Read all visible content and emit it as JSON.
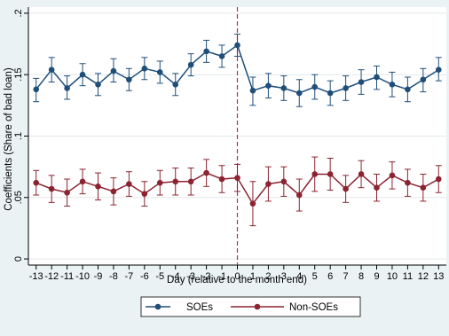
{
  "chart_data": {
    "type": "line",
    "xlabel": "Day (relative to the month end)",
    "ylabel": "Coefficients (Share of bad loan)",
    "x": [
      -13,
      -12,
      -11,
      -10,
      -9,
      -8,
      -7,
      -6,
      -5,
      -4,
      -3,
      -2,
      -1,
      0,
      1,
      2,
      3,
      4,
      5,
      6,
      7,
      8,
      9,
      10,
      11,
      12,
      13
    ],
    "x_tick_labels": [
      "-13",
      "-12",
      "-11",
      "-10",
      "-9",
      "-8",
      "-7",
      "-6",
      "-5",
      "-4",
      "-3",
      "-2",
      "-1",
      "0",
      "1",
      "2",
      "3",
      "4",
      "5",
      "6",
      "7",
      "8",
      "9",
      "10",
      "11",
      "12",
      "13"
    ],
    "y_ticks": [
      0,
      0.05,
      0.1,
      0.15,
      0.2
    ],
    "y_tick_labels": [
      "0",
      ".05",
      ".1",
      ".15",
      ".2"
    ],
    "xlim": [
      -13.5,
      13.5
    ],
    "ylim": [
      -0.005,
      0.205
    ],
    "reference_line_x": 0,
    "grid": "horizontal",
    "legend_position": "bottom",
    "series": [
      {
        "name": "SOEs",
        "color": "#1f4e79",
        "marker": "circle",
        "values": [
          0.138,
          0.154,
          0.139,
          0.15,
          0.142,
          0.153,
          0.146,
          0.155,
          0.152,
          0.142,
          0.158,
          0.169,
          0.165,
          0.174,
          0.137,
          0.141,
          0.139,
          0.135,
          0.14,
          0.135,
          0.139,
          0.144,
          0.148,
          0.142,
          0.138,
          0.146,
          0.154
        ],
        "ci_low": [
          0.128,
          0.144,
          0.13,
          0.141,
          0.133,
          0.144,
          0.137,
          0.146,
          0.143,
          0.133,
          0.149,
          0.16,
          0.156,
          0.165,
          0.125,
          0.131,
          0.129,
          0.124,
          0.13,
          0.125,
          0.129,
          0.134,
          0.138,
          0.132,
          0.128,
          0.136,
          0.145
        ],
        "ci_high": [
          0.147,
          0.164,
          0.149,
          0.159,
          0.151,
          0.163,
          0.155,
          0.164,
          0.161,
          0.151,
          0.167,
          0.178,
          0.174,
          0.183,
          0.148,
          0.151,
          0.149,
          0.146,
          0.15,
          0.145,
          0.149,
          0.154,
          0.157,
          0.152,
          0.148,
          0.155,
          0.164
        ]
      },
      {
        "name": "Non-SOEs",
        "color": "#8b2331",
        "marker": "circle",
        "values": [
          0.062,
          0.057,
          0.054,
          0.063,
          0.059,
          0.055,
          0.061,
          0.053,
          0.062,
          0.063,
          0.063,
          0.07,
          0.065,
          0.066,
          0.045,
          0.061,
          0.063,
          0.052,
          0.069,
          0.069,
          0.057,
          0.069,
          0.058,
          0.068,
          0.062,
          0.058,
          0.065
        ],
        "ci_low": [
          0.052,
          0.046,
          0.043,
          0.053,
          0.048,
          0.044,
          0.051,
          0.043,
          0.052,
          0.052,
          0.052,
          0.059,
          0.054,
          0.055,
          0.027,
          0.047,
          0.051,
          0.039,
          0.055,
          0.056,
          0.046,
          0.058,
          0.047,
          0.057,
          0.051,
          0.047,
          0.054
        ],
        "ci_high": [
          0.072,
          0.068,
          0.065,
          0.073,
          0.07,
          0.066,
          0.071,
          0.063,
          0.072,
          0.074,
          0.074,
          0.081,
          0.076,
          0.077,
          0.063,
          0.075,
          0.075,
          0.065,
          0.083,
          0.082,
          0.068,
          0.08,
          0.069,
          0.079,
          0.073,
          0.069,
          0.076
        ]
      }
    ]
  }
}
